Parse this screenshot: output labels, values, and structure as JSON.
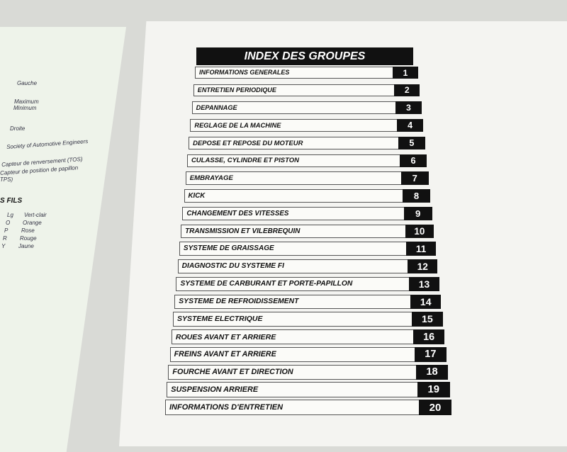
{
  "left_page": {
    "terms": [
      "Gauche",
      "Maximum",
      "Minimum",
      "Droite",
      "Society of Automotive Engineers",
      "Capteur de renversement (TOS)",
      "Capteur de position de papillon",
      "TPS)"
    ],
    "section_heading": "S FILS",
    "wire_colors": [
      {
        "code": "Lg",
        "name": "Vert-clair"
      },
      {
        "code": "O",
        "name": "Orange"
      },
      {
        "code": "P",
        "name": "Rose"
      },
      {
        "code": "R",
        "name": "Rouge"
      },
      {
        "code": "Y",
        "name": "Jaune"
      }
    ]
  },
  "index": {
    "title": "INDEX DES GROUPES",
    "items": [
      {
        "label": "INFORMATIONS GENERALES",
        "number": "1"
      },
      {
        "label": "ENTRETIEN PERIODIQUE",
        "number": "2"
      },
      {
        "label": "DEPANNAGE",
        "number": "3"
      },
      {
        "label": "REGLAGE DE LA MACHINE",
        "number": "4"
      },
      {
        "label": "DEPOSE ET REPOSE DU MOTEUR",
        "number": "5"
      },
      {
        "label": "CULASSE, CYLINDRE ET PISTON",
        "number": "6"
      },
      {
        "label": "EMBRAYAGE",
        "number": "7"
      },
      {
        "label": "KICK",
        "number": "8"
      },
      {
        "label": "CHANGEMENT DES VITESSES",
        "number": "9"
      },
      {
        "label": "TRANSMISSION ET VILEBREQUIN",
        "number": "10"
      },
      {
        "label": "SYSTEME DE GRAISSAGE",
        "number": "11"
      },
      {
        "label": "DIAGNOSTIC DU SYSTEME FI",
        "number": "12"
      },
      {
        "label": "SYSTEME DE CARBURANT ET PORTE-PAPILLON",
        "number": "13"
      },
      {
        "label": "SYSTEME DE REFROIDISSEMENT",
        "number": "14"
      },
      {
        "label": "SYSTEME ELECTRIQUE",
        "number": "15"
      },
      {
        "label": "ROUES AVANT ET ARRIERE",
        "number": "16"
      },
      {
        "label": "FREINS AVANT ET ARRIERE",
        "number": "17"
      },
      {
        "label": "FOURCHE AVANT ET DIRECTION",
        "number": "18"
      },
      {
        "label": "SUSPENSION ARRIERE",
        "number": "19"
      },
      {
        "label": "INFORMATIONS D'ENTRETIEN",
        "number": "20"
      }
    ]
  }
}
